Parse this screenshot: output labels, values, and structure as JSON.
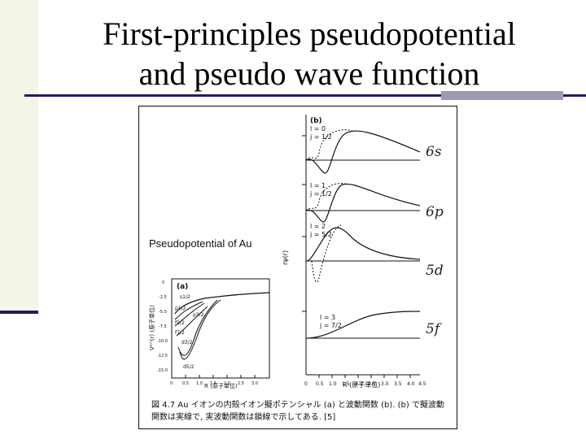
{
  "slide": {
    "title_line1": "First-principles pseudopotential",
    "title_line2": "and pseudo wave function",
    "figure_label": "Pseudopotential of Au",
    "caption_line1": "図 4.7  Au イオンの内殻イオン擬ポテンシャル (a) と波動関数 (b). (b) で擬波動",
    "caption_line2": "関数は実線で, 実波動関数は鎖線で示してある. [5]"
  },
  "figure": {
    "panel_a": {
      "tag": "(a)",
      "ylabel": "Vᴵᵒⁿ(r) (原子単位)",
      "xlabel": "R (原子単位)",
      "curve_labels": [
        "s1/2",
        "p1/2",
        "p3/2",
        "f5/2",
        "f7/2",
        "d3/2",
        "d5/2"
      ],
      "x_ticks": [
        "0",
        "0.5",
        "1.0",
        "1.5",
        "2.0",
        "2.5",
        "3.0"
      ],
      "y_ticks": [
        "0",
        "-2.5",
        "-5.0",
        "-7.5",
        "-10.0",
        "-12.5",
        "-15.0"
      ]
    },
    "panel_b": {
      "tag": "(b)",
      "ylabel": "rψ(r)",
      "xlabel": "R (原子単位)",
      "x_ticks": [
        "0",
        "0.5",
        "1.0",
        "1.5",
        "2.0",
        "2.5",
        "3.0",
        "3.5",
        "4.0",
        "4.5"
      ],
      "states": [
        {
          "l": "l = 0",
          "j": "j = 1/2",
          "tag": "6s"
        },
        {
          "l": "l = 1",
          "j": "j = 1/2",
          "tag": "6p"
        },
        {
          "l": "l = 2",
          "j": "j = 5/2",
          "tag": "5d"
        },
        {
          "l": "l = 3",
          "j": "j = 7/2",
          "tag": "5f"
        }
      ]
    }
  }
}
